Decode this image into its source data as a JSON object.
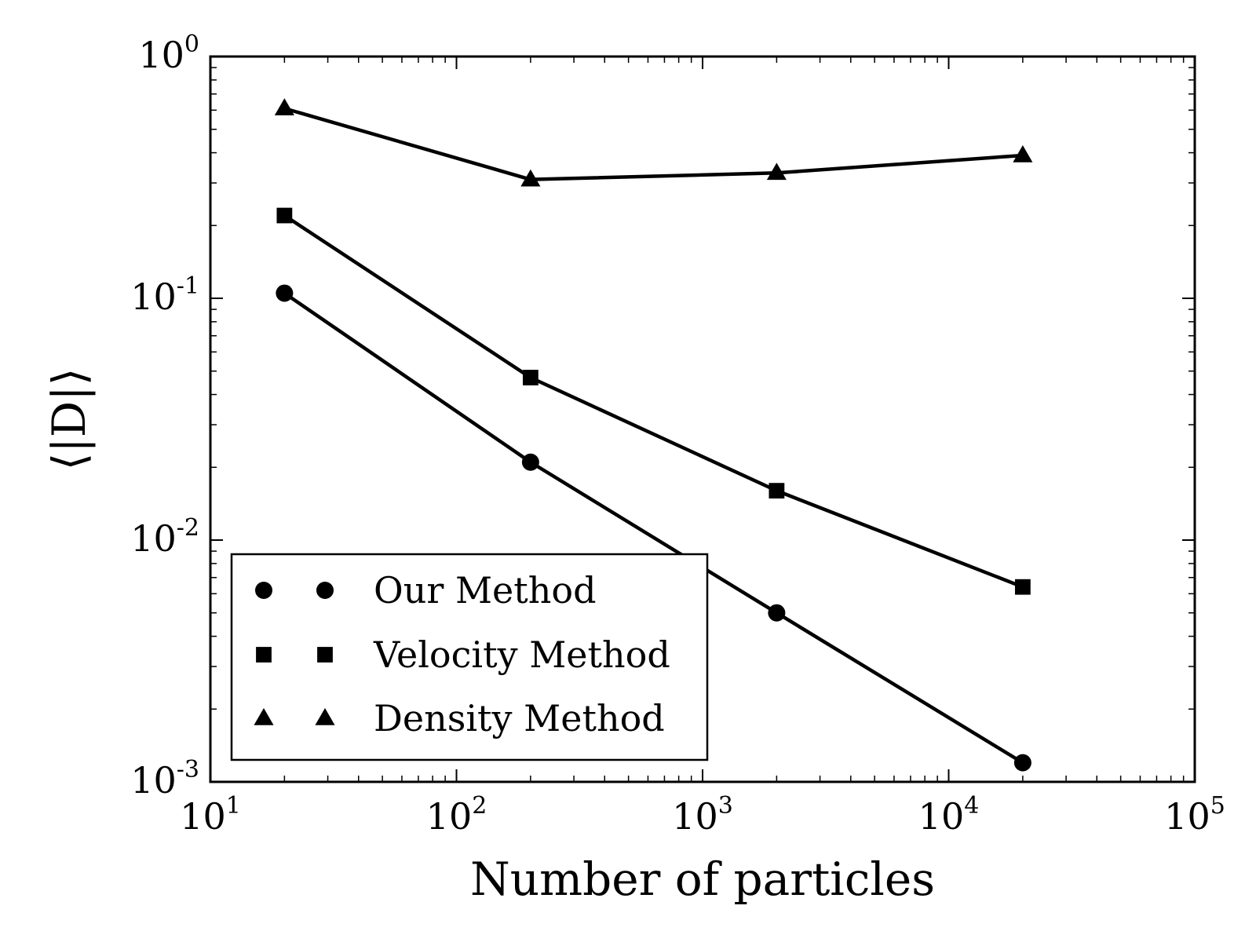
{
  "chart_data": {
    "type": "line",
    "x_scale": "log",
    "y_scale": "log",
    "xlabel": "Number of particles",
    "ylabel": "⟨|D|⟩",
    "xlim": [
      10,
      100000
    ],
    "ylim": [
      0.001,
      1
    ],
    "x_ticks": [
      {
        "base": "10",
        "exp": "1"
      },
      {
        "base": "10",
        "exp": "2"
      },
      {
        "base": "10",
        "exp": "3"
      },
      {
        "base": "10",
        "exp": "4"
      },
      {
        "base": "10",
        "exp": "5"
      }
    ],
    "y_ticks": [
      {
        "base": "10",
        "exp": "0"
      },
      {
        "base": "10",
        "exp": "-1"
      },
      {
        "base": "10",
        "exp": "-2"
      },
      {
        "base": "10",
        "exp": "-3"
      }
    ],
    "x": [
      20,
      200,
      2000,
      20000
    ],
    "series": [
      {
        "name": "Our Method",
        "marker": "circle",
        "values": [
          0.105,
          0.021,
          0.005,
          0.0012
        ]
      },
      {
        "name": "Velocity Method",
        "marker": "square",
        "values": [
          0.22,
          0.047,
          0.016,
          0.0064
        ]
      },
      {
        "name": "Density Method",
        "marker": "triangle",
        "values": [
          0.61,
          0.31,
          0.33,
          0.39
        ]
      }
    ],
    "legend": "lower-left",
    "grid": false,
    "color": "#000000"
  }
}
